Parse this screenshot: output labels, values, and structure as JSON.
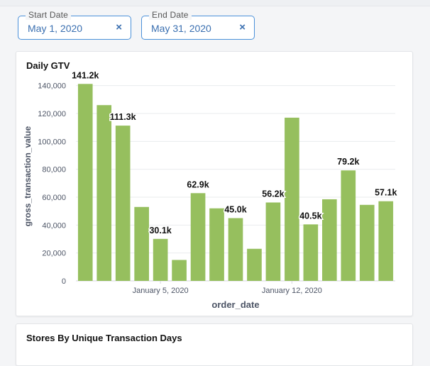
{
  "filters": {
    "start": {
      "label": "Start Date",
      "value": "May 1, 2020",
      "clear_icon": "×"
    },
    "end": {
      "label": "End Date",
      "value": "May 31, 2020",
      "clear_icon": "×"
    }
  },
  "cards": {
    "daily_gtv_title": "Daily GTV",
    "stores_title": "Stores By Unique Transaction Days"
  },
  "chart_data": {
    "type": "bar",
    "title": "Daily GTV",
    "xlabel": "order_date",
    "ylabel": "gross_transaction_value",
    "ylim": [
      0,
      150000
    ],
    "yticks": [
      0,
      20000,
      40000,
      60000,
      80000,
      100000,
      120000,
      140000
    ],
    "ytick_labels": [
      "0",
      "20,000",
      "40,000",
      "60,000",
      "80,000",
      "100,000",
      "120,000",
      "140,000"
    ],
    "xtick_labels": [
      {
        "index": 4,
        "label": "January 5, 2020"
      },
      {
        "index": 11,
        "label": "January 12, 2020"
      }
    ],
    "bar_color": "#96bf5e",
    "grid": true,
    "values": [
      141200,
      126000,
      111300,
      53000,
      30100,
      15000,
      62900,
      52000,
      45000,
      23000,
      56200,
      117000,
      40500,
      58500,
      79200,
      54500,
      57100
    ],
    "data_labels": [
      "141.2k",
      "",
      "111.3k",
      "",
      "30.1k",
      "",
      "62.9k",
      "",
      "45.0k",
      "",
      "56.2k",
      "",
      "40.5k",
      "",
      "79.2k",
      "",
      "57.1k"
    ]
  }
}
